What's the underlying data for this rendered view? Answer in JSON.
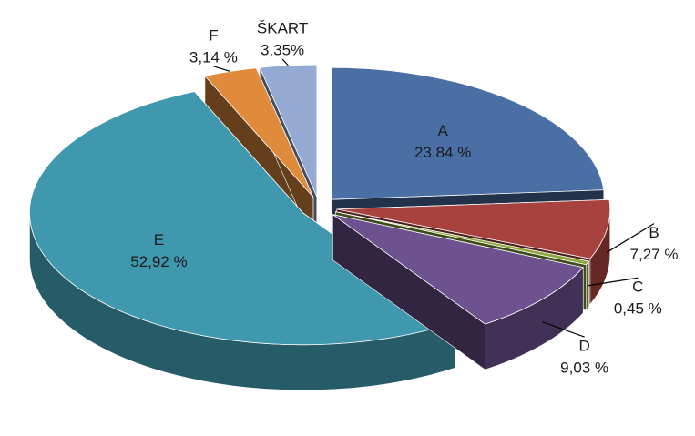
{
  "chart_data": {
    "type": "pie",
    "categories": [
      "A",
      "B",
      "C",
      "D",
      "E",
      "F",
      "ŠKART"
    ],
    "values": [
      23.84,
      7.27,
      0.45,
      9.03,
      52.92,
      3.14,
      3.35
    ],
    "value_labels": [
      "23,84 %",
      "7,27 %",
      "0,45 %",
      "9,03 %",
      "52,92 %",
      "3,14 %",
      "3,35%"
    ],
    "colors": [
      "#4a6fa5",
      "#a8423e",
      "#8fa83e",
      "#6e5290",
      "#3f98ad",
      "#e08b3c",
      "#94aad2"
    ]
  }
}
